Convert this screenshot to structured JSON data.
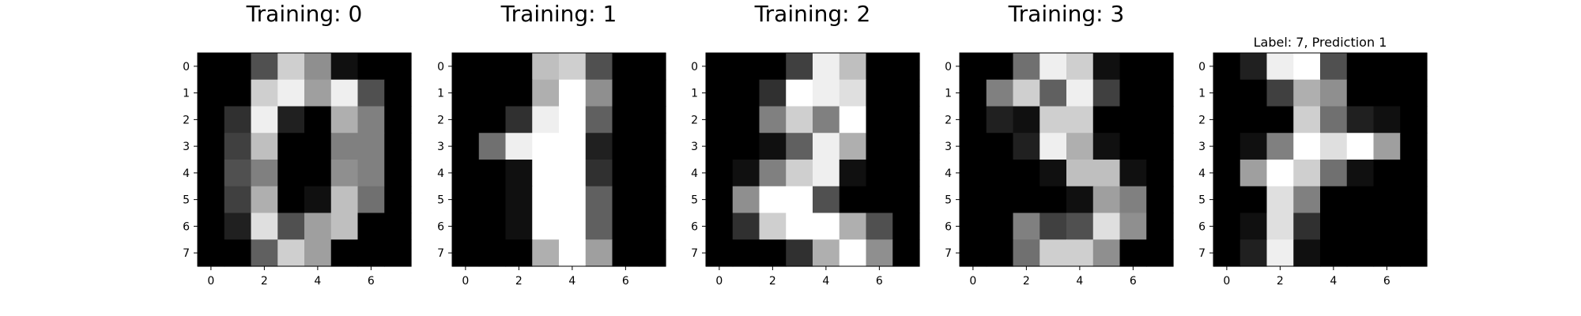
{
  "chart_data": [
    {
      "type": "heatmap",
      "title": "Training: 0",
      "colormap": "gray",
      "vmin": 0,
      "vmax": 16,
      "xticks": [
        0,
        2,
        4,
        6
      ],
      "yticks": [
        0,
        1,
        2,
        3,
        4,
        5,
        6,
        7
      ],
      "grid": false,
      "values": [
        [
          0,
          0,
          5,
          13,
          9,
          1,
          0,
          0
        ],
        [
          0,
          0,
          13,
          15,
          10,
          15,
          5,
          0
        ],
        [
          0,
          3,
          15,
          2,
          0,
          11,
          8,
          0
        ],
        [
          0,
          4,
          12,
          0,
          0,
          8,
          8,
          0
        ],
        [
          0,
          5,
          8,
          0,
          0,
          9,
          8,
          0
        ],
        [
          0,
          4,
          11,
          0,
          1,
          12,
          7,
          0
        ],
        [
          0,
          2,
          14,
          5,
          10,
          12,
          0,
          0
        ],
        [
          0,
          0,
          6,
          13,
          10,
          0,
          0,
          0
        ]
      ]
    },
    {
      "type": "heatmap",
      "title": "Training: 1",
      "colormap": "gray",
      "vmin": 0,
      "vmax": 16,
      "xticks": [
        0,
        2,
        4,
        6
      ],
      "yticks": [
        0,
        1,
        2,
        3,
        4,
        5,
        6,
        7
      ],
      "grid": false,
      "values": [
        [
          0,
          0,
          0,
          12,
          13,
          5,
          0,
          0
        ],
        [
          0,
          0,
          0,
          11,
          16,
          9,
          0,
          0
        ],
        [
          0,
          0,
          3,
          15,
          16,
          6,
          0,
          0
        ],
        [
          0,
          7,
          15,
          16,
          16,
          2,
          0,
          0
        ],
        [
          0,
          0,
          1,
          16,
          16,
          3,
          0,
          0
        ],
        [
          0,
          0,
          1,
          16,
          16,
          6,
          0,
          0
        ],
        [
          0,
          0,
          1,
          16,
          16,
          6,
          0,
          0
        ],
        [
          0,
          0,
          0,
          11,
          16,
          10,
          0,
          0
        ]
      ]
    },
    {
      "type": "heatmap",
      "title": "Training: 2",
      "colormap": "gray",
      "vmin": 0,
      "vmax": 16,
      "xticks": [
        0,
        2,
        4,
        6
      ],
      "yticks": [
        0,
        1,
        2,
        3,
        4,
        5,
        6,
        7
      ],
      "grid": false,
      "values": [
        [
          0,
          0,
          0,
          4,
          15,
          12,
          0,
          0
        ],
        [
          0,
          0,
          3,
          16,
          15,
          14,
          0,
          0
        ],
        [
          0,
          0,
          8,
          13,
          8,
          16,
          0,
          0
        ],
        [
          0,
          0,
          1,
          6,
          15,
          11,
          0,
          0
        ],
        [
          0,
          1,
          8,
          13,
          15,
          1,
          0,
          0
        ],
        [
          0,
          9,
          16,
          16,
          5,
          0,
          0,
          0
        ],
        [
          0,
          3,
          13,
          16,
          16,
          11,
          5,
          0
        ],
        [
          0,
          0,
          0,
          3,
          11,
          16,
          9,
          0
        ]
      ]
    },
    {
      "type": "heatmap",
      "title": "Training: 3",
      "colormap": "gray",
      "vmin": 0,
      "vmax": 16,
      "xticks": [
        0,
        2,
        4,
        6
      ],
      "yticks": [
        0,
        1,
        2,
        3,
        4,
        5,
        6,
        7
      ],
      "grid": false,
      "values": [
        [
          0,
          0,
          7,
          15,
          13,
          1,
          0,
          0
        ],
        [
          0,
          8,
          13,
          6,
          15,
          4,
          0,
          0
        ],
        [
          0,
          2,
          1,
          13,
          13,
          0,
          0,
          0
        ],
        [
          0,
          0,
          2,
          15,
          11,
          1,
          0,
          0
        ],
        [
          0,
          0,
          0,
          1,
          12,
          12,
          1,
          0
        ],
        [
          0,
          0,
          0,
          0,
          1,
          10,
          8,
          0
        ],
        [
          0,
          0,
          8,
          4,
          5,
          14,
          9,
          0
        ],
        [
          0,
          0,
          7,
          13,
          13,
          9,
          0,
          0
        ]
      ]
    },
    {
      "type": "heatmap",
      "title": "Label: 7, Prediction 1",
      "colormap": "gray",
      "vmin": 0,
      "vmax": 16,
      "xticks": [
        0,
        2,
        4,
        6
      ],
      "yticks": [
        0,
        1,
        2,
        3,
        4,
        5,
        6,
        7
      ],
      "grid": false,
      "values": [
        [
          0,
          2,
          15,
          16,
          5,
          0,
          0,
          0
        ],
        [
          0,
          0,
          4,
          11,
          9,
          0,
          0,
          0
        ],
        [
          0,
          0,
          0,
          13,
          7,
          2,
          1,
          0
        ],
        [
          0,
          1,
          8,
          16,
          14,
          16,
          10,
          0
        ],
        [
          0,
          10,
          16,
          13,
          7,
          1,
          0,
          0
        ],
        [
          0,
          0,
          14,
          8,
          0,
          0,
          0,
          0
        ],
        [
          0,
          1,
          14,
          3,
          0,
          0,
          0,
          0
        ],
        [
          0,
          2,
          15,
          1,
          0,
          0,
          0,
          0
        ]
      ]
    }
  ]
}
